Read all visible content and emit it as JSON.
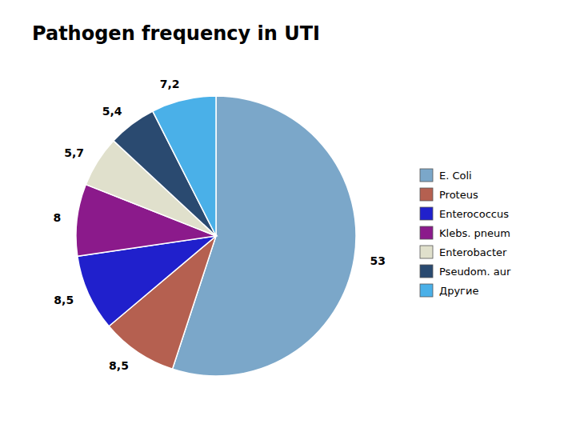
{
  "chart_data": {
    "type": "pie",
    "title": "Pathogen frequency in UTI",
    "categories": [
      "E. Coli",
      "Proteus",
      "Enterococcus",
      "Klebs. pneum",
      "Enterobacter",
      "Pseudom. aur",
      "Другие"
    ],
    "values": [
      53,
      8.5,
      8.5,
      8,
      5.7,
      5.4,
      7.2
    ],
    "value_labels": [
      "53",
      "8,5",
      "8,5",
      "8",
      "5,7",
      "5,4",
      "7,2"
    ],
    "colors": [
      "#7ba7c9",
      "#b56050",
      "#2020cc",
      "#8b1a8b",
      "#e0e0cc",
      "#2a4a70",
      "#4ab0e8"
    ],
    "data_labels": true,
    "legend": "right"
  }
}
